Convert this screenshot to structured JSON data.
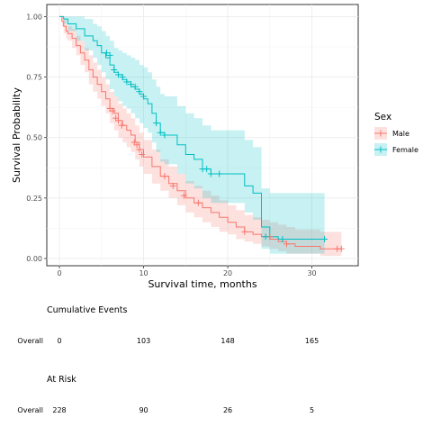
{
  "chart_data": {
    "type": "line",
    "subtype": "kaplan-meier",
    "xlabel": "Survival time, months",
    "ylabel": "Survival Probability",
    "xlim": [
      -1.5,
      35.5
    ],
    "ylim": [
      -0.03,
      1.05
    ],
    "x_ticks": [
      0,
      10,
      20,
      30
    ],
    "x_tick_labels": [
      "0",
      "10",
      "20",
      "30"
    ],
    "y_ticks": [
      0,
      0.25,
      0.5,
      0.75,
      1
    ],
    "y_tick_labels": [
      "0.00",
      "0.25",
      "0.50",
      "0.75",
      "1.00"
    ],
    "grid": true,
    "legend": {
      "title": "Sex",
      "position": "right",
      "entries": [
        "Male",
        "Female"
      ]
    },
    "colors": {
      "Male": "#F8766D",
      "Female": "#00BFC4"
    },
    "series": [
      {
        "name": "Male",
        "color": "#F8766D",
        "band_color": "#F8766D",
        "x": [
          0,
          0.3,
          0.5,
          0.8,
          1,
          1.5,
          2,
          2.5,
          3,
          3.5,
          4,
          4.5,
          5,
          5.5,
          6,
          6.5,
          7,
          7.5,
          8,
          8.5,
          9,
          9.5,
          10,
          11,
          12,
          13,
          14,
          15,
          16,
          17,
          18,
          19,
          20,
          21,
          22,
          23,
          24,
          25,
          26,
          27,
          28,
          29,
          30,
          31,
          33.5
        ],
        "y": [
          1,
          0.98,
          0.96,
          0.94,
          0.93,
          0.91,
          0.88,
          0.85,
          0.82,
          0.78,
          0.75,
          0.72,
          0.69,
          0.66,
          0.62,
          0.6,
          0.57,
          0.55,
          0.53,
          0.51,
          0.48,
          0.45,
          0.42,
          0.38,
          0.34,
          0.31,
          0.28,
          0.25,
          0.23,
          0.21,
          0.19,
          0.17,
          0.15,
          0.13,
          0.11,
          0.1,
          0.09,
          0.08,
          0.07,
          0.06,
          0.05,
          0.05,
          0.05,
          0.04,
          0.04
        ],
        "upper": [
          1,
          1,
          0.99,
          0.97,
          0.96,
          0.95,
          0.92,
          0.9,
          0.87,
          0.84,
          0.81,
          0.78,
          0.75,
          0.72,
          0.69,
          0.67,
          0.64,
          0.62,
          0.6,
          0.58,
          0.55,
          0.52,
          0.49,
          0.45,
          0.41,
          0.38,
          0.35,
          0.32,
          0.3,
          0.28,
          0.26,
          0.24,
          0.22,
          0.2,
          0.18,
          0.17,
          0.16,
          0.15,
          0.14,
          0.13,
          0.12,
          0.12,
          0.12,
          0.11,
          0.11
        ],
        "lower": [
          1,
          0.96,
          0.93,
          0.91,
          0.9,
          0.87,
          0.84,
          0.8,
          0.77,
          0.72,
          0.69,
          0.66,
          0.63,
          0.6,
          0.56,
          0.53,
          0.5,
          0.48,
          0.46,
          0.44,
          0.41,
          0.38,
          0.35,
          0.31,
          0.28,
          0.25,
          0.22,
          0.19,
          0.17,
          0.15,
          0.13,
          0.11,
          0.1,
          0.08,
          0.07,
          0.06,
          0.05,
          0.04,
          0.03,
          0.02,
          0.02,
          0.02,
          0.02,
          0.01,
          0.01
        ],
        "censor_x": [
          6,
          6.3,
          6.7,
          7,
          7.4,
          8.9,
          9.2,
          9.5,
          9.8,
          12.5,
          13.5,
          14.8,
          16.5,
          22,
          25,
          27,
          33,
          33.5
        ],
        "censor_y": [
          0.62,
          0.61,
          0.58,
          0.57,
          0.55,
          0.48,
          0.47,
          0.45,
          0.43,
          0.34,
          0.3,
          0.26,
          0.23,
          0.11,
          0.09,
          0.06,
          0.04,
          0.04
        ]
      },
      {
        "name": "Female",
        "color": "#00BFC4",
        "band_color": "#00BFC4",
        "x": [
          0,
          0.5,
          1,
          2,
          3,
          4,
          4.5,
          5,
          5.5,
          6,
          6.5,
          7,
          7.5,
          8,
          8.5,
          9,
          9.5,
          10,
          10.5,
          11,
          11.5,
          12,
          12.5,
          13,
          14,
          15,
          16,
          17,
          18,
          19,
          20,
          21,
          22,
          23,
          24,
          25,
          26,
          27,
          28,
          31.5
        ],
        "y": [
          1,
          0.99,
          0.97,
          0.95,
          0.92,
          0.9,
          0.88,
          0.85,
          0.83,
          0.8,
          0.77,
          0.76,
          0.74,
          0.73,
          0.71,
          0.7,
          0.68,
          0.66,
          0.64,
          0.6,
          0.56,
          0.52,
          0.51,
          0.51,
          0.47,
          0.43,
          0.41,
          0.37,
          0.35,
          0.35,
          0.35,
          0.35,
          0.3,
          0.27,
          0.13,
          0.09,
          0.08,
          0.08,
          0.08,
          0.08
        ],
        "upper": [
          1,
          1,
          1,
          1,
          0.99,
          0.97,
          0.96,
          0.94,
          0.92,
          0.9,
          0.87,
          0.86,
          0.85,
          0.84,
          0.83,
          0.82,
          0.8,
          0.79,
          0.77,
          0.74,
          0.71,
          0.68,
          0.67,
          0.67,
          0.63,
          0.6,
          0.58,
          0.55,
          0.53,
          0.53,
          0.53,
          0.53,
          0.49,
          0.46,
          0.29,
          0.27,
          0.27,
          0.27,
          0.27,
          0.27
        ],
        "lower": [
          1,
          0.97,
          0.94,
          0.9,
          0.86,
          0.83,
          0.8,
          0.77,
          0.74,
          0.7,
          0.67,
          0.65,
          0.63,
          0.62,
          0.6,
          0.58,
          0.56,
          0.54,
          0.52,
          0.48,
          0.44,
          0.4,
          0.39,
          0.39,
          0.35,
          0.31,
          0.29,
          0.25,
          0.23,
          0.23,
          0.23,
          0.23,
          0.19,
          0.16,
          0.04,
          0.02,
          0.02,
          0.02,
          0.02,
          0.02
        ],
        "censor_x": [
          5.6,
          6,
          6.5,
          7,
          7.5,
          8,
          8.5,
          9,
          9.5,
          10,
          11.5,
          12,
          12.5,
          17,
          17.5,
          18,
          19,
          24.5,
          26.5,
          31.5
        ],
        "censor_y": [
          0.85,
          0.84,
          0.78,
          0.76,
          0.75,
          0.73,
          0.72,
          0.71,
          0.69,
          0.67,
          0.56,
          0.52,
          0.51,
          0.37,
          0.37,
          0.35,
          0.35,
          0.09,
          0.08,
          0.08
        ]
      }
    ],
    "tables": [
      {
        "title": "Cumulative Events",
        "row_label": "Overall",
        "times": [
          0,
          10,
          20,
          30
        ],
        "values": [
          "0",
          "103",
          "148",
          "165"
        ]
      },
      {
        "title": "At Risk",
        "row_label": "Overall",
        "times": [
          0,
          10,
          20,
          30
        ],
        "values": [
          "228",
          "90",
          "26",
          "5"
        ]
      }
    ]
  }
}
